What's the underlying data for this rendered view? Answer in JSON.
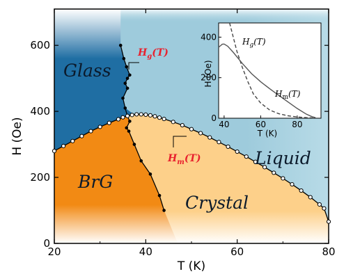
{
  "chart_data": {
    "type": "line",
    "xlabel": "T (K)",
    "ylabel": "H (Oe)",
    "xlim": [
      20,
      80
    ],
    "ylim": [
      0,
      710
    ],
    "x_ticks": [
      20,
      40,
      60,
      80
    ],
    "y_ticks": [
      0,
      200,
      400,
      600
    ],
    "regions": {
      "glass": "Glass",
      "brg": "BrG",
      "crystal": "Crystal",
      "liquid": "Liquid"
    },
    "colors": {
      "glass": "#1f6ea3",
      "brg": "#f28a14",
      "crystal": "#fdd08a",
      "liquid": "#9ecbdc",
      "label_red": "#e8212e"
    },
    "hg_label": "H",
    "hg_sub": "g",
    "hg_arg": "(T)",
    "hm_label": "H",
    "hm_sub": "m",
    "hm_arg": "(T)",
    "series": [
      {
        "name": "H_m(T)",
        "style": "open-circles",
        "points": [
          [
            20,
            280
          ],
          [
            22,
            295
          ],
          [
            24,
            310
          ],
          [
            26,
            325
          ],
          [
            28,
            340
          ],
          [
            30,
            353
          ],
          [
            32,
            365
          ],
          [
            34,
            376
          ],
          [
            35,
            382
          ],
          [
            36,
            386
          ],
          [
            37,
            389
          ],
          [
            38,
            391
          ],
          [
            39,
            391
          ],
          [
            40,
            390
          ],
          [
            41,
            388
          ],
          [
            42,
            385
          ],
          [
            43,
            381
          ],
          [
            44,
            377
          ],
          [
            46,
            368
          ],
          [
            48,
            358
          ],
          [
            50,
            346
          ],
          [
            52,
            334
          ],
          [
            54,
            321
          ],
          [
            56,
            307
          ],
          [
            58,
            293
          ],
          [
            60,
            278
          ],
          [
            62,
            263
          ],
          [
            64,
            247
          ],
          [
            66,
            231
          ],
          [
            68,
            214
          ],
          [
            70,
            197
          ],
          [
            72,
            179
          ],
          [
            74,
            160
          ],
          [
            76,
            140
          ],
          [
            78,
            118
          ],
          [
            79,
            106
          ],
          [
            80,
            66
          ]
        ]
      },
      {
        "name": "H_g(T)",
        "style": "filled-dots-line",
        "points": [
          [
            44,
            100
          ],
          [
            43,
            145
          ],
          [
            41,
            210
          ],
          [
            39,
            250
          ],
          [
            37.5,
            300
          ],
          [
            36.3,
            340
          ],
          [
            35.8,
            350
          ],
          [
            36.5,
            370
          ],
          [
            36,
            385
          ],
          [
            35.5,
            410
          ],
          [
            35,
            440
          ],
          [
            36,
            470
          ],
          [
            35.5,
            485
          ],
          [
            36,
            500
          ],
          [
            36.5,
            510
          ],
          [
            35.8,
            535
          ],
          [
            35.2,
            560
          ],
          [
            34.5,
            600
          ]
        ]
      }
    ],
    "inset": {
      "xlabel": "T (K)",
      "ylabel": "H (Oe)",
      "xlim": [
        37,
        93
      ],
      "ylim": [
        0,
        470
      ],
      "x_ticks": [
        40,
        60,
        80
      ],
      "y_ticks": [
        0,
        200,
        400
      ],
      "series": [
        {
          "name": "H_g(T)",
          "style": "dashed",
          "points": [
            [
              43,
              470
            ],
            [
              45,
              400
            ],
            [
              47,
              330
            ],
            [
              50,
              250
            ],
            [
              53,
              180
            ],
            [
              56,
              120
            ],
            [
              60,
              75
            ],
            [
              65,
              40
            ],
            [
              70,
              22
            ],
            [
              75,
              12
            ],
            [
              80,
              6
            ],
            [
              85,
              3
            ],
            [
              90,
              1
            ]
          ]
        },
        {
          "name": "H_m(T)",
          "style": "solid",
          "points": [
            [
              37,
              350
            ],
            [
              39,
              365
            ],
            [
              40,
              366
            ],
            [
              42,
              355
            ],
            [
              45,
              325
            ],
            [
              50,
              270
            ],
            [
              55,
              220
            ],
            [
              60,
              180
            ],
            [
              65,
              145
            ],
            [
              70,
              112
            ],
            [
              75,
              80
            ],
            [
              80,
              48
            ],
            [
              85,
              20
            ],
            [
              88,
              8
            ],
            [
              90,
              3
            ]
          ]
        }
      ]
    }
  }
}
